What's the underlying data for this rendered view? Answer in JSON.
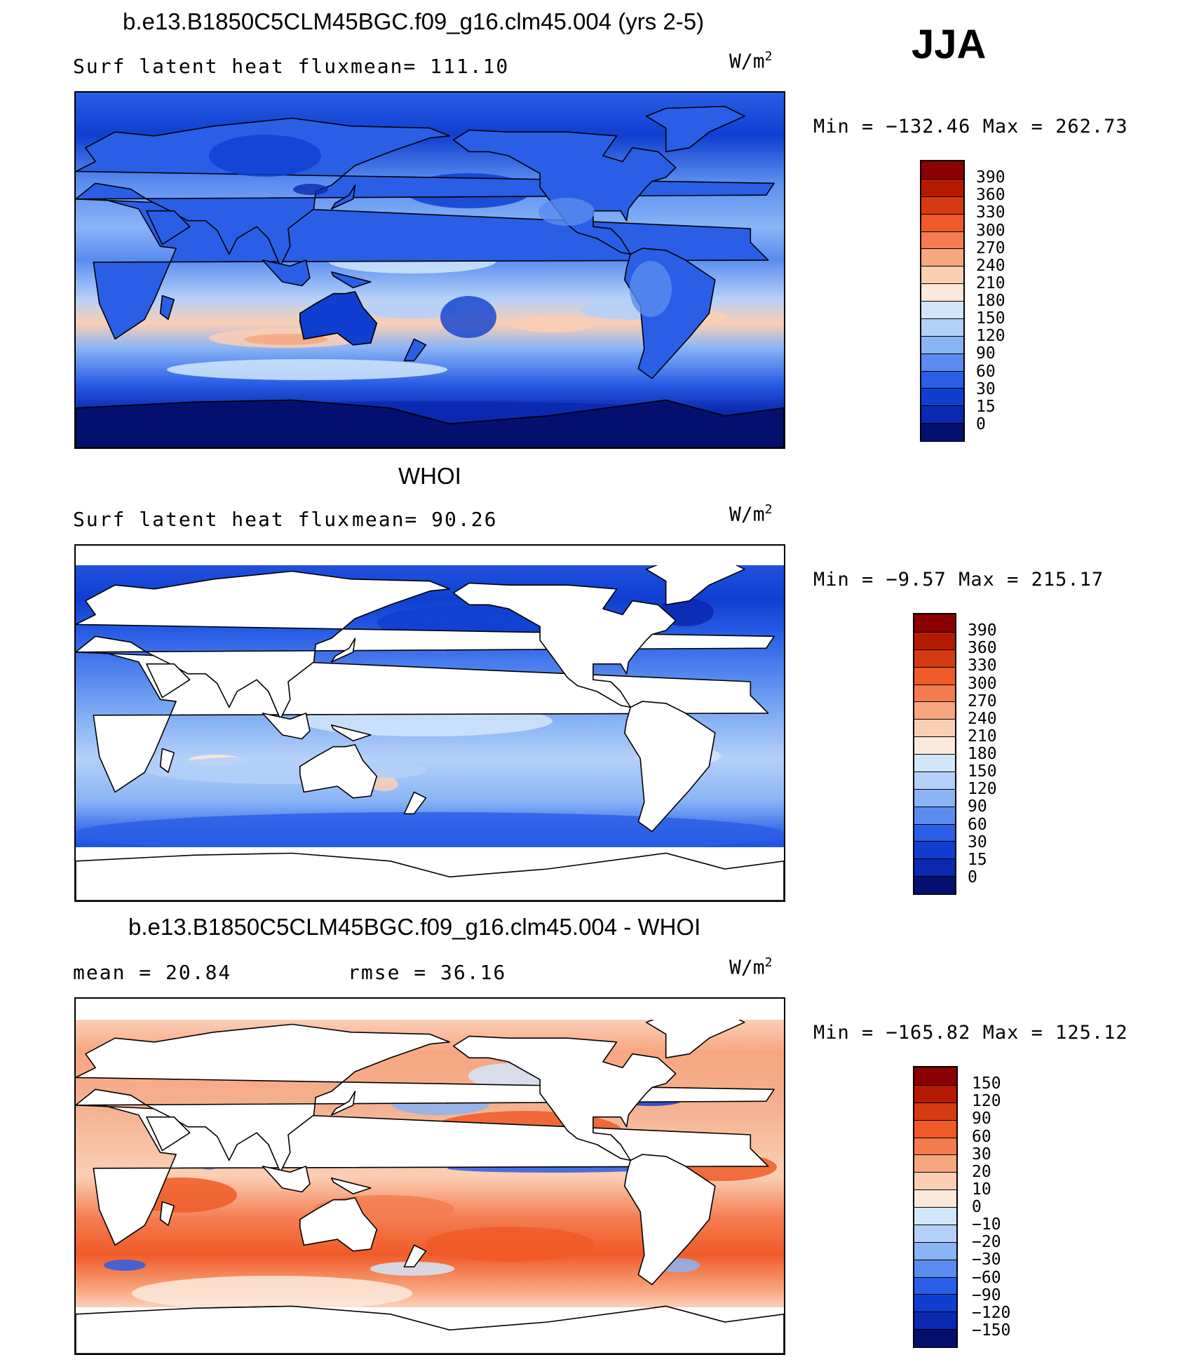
{
  "figure": {
    "season": "JJA",
    "units": "W/m",
    "units_sup": "2"
  },
  "panels": [
    {
      "id": "model",
      "title": "b.e13.B1850C5CLM45BGC.f09_g16.clm45.004 (yrs 2-5)",
      "left_label": "Surf latent heat flux",
      "right_label": "mean= 111.10",
      "stats": "Min = −132.46 Max = 262.73",
      "colorbar": {
        "levels": [
          "390",
          "360",
          "330",
          "300",
          "270",
          "240",
          "210",
          "180",
          "150",
          "120",
          "90",
          "60",
          "30",
          "15",
          "0"
        ],
        "colors": [
          "#8b0000",
          "#b51a00",
          "#d63a10",
          "#f05a28",
          "#f47c50",
          "#f8a680",
          "#fbcfb4",
          "#fde9dc",
          "#d2e6fa",
          "#b4d0f8",
          "#8ab4f6",
          "#5a8cf0",
          "#2a5ee6",
          "#0f3ed0",
          "#0a28b0",
          "#03106e"
        ]
      },
      "map_style": "model"
    },
    {
      "id": "obs",
      "title": "WHOI",
      "left_label": "Surf latent heat flux",
      "right_label": "mean=  90.26",
      "stats": "Min =  −9.57 Max = 215.17",
      "colorbar": {
        "levels": [
          "390",
          "360",
          "330",
          "300",
          "270",
          "240",
          "210",
          "180",
          "150",
          "120",
          "90",
          "60",
          "30",
          "15",
          "0"
        ],
        "colors": [
          "#8b0000",
          "#b51a00",
          "#d63a10",
          "#f05a28",
          "#f47c50",
          "#f8a680",
          "#fbcfb4",
          "#fde9dc",
          "#d2e6fa",
          "#b4d0f8",
          "#8ab4f6",
          "#5a8cf0",
          "#2a5ee6",
          "#0f3ed0",
          "#0a28b0",
          "#03106e"
        ]
      },
      "map_style": "obs"
    },
    {
      "id": "diff",
      "title": "b.e13.B1850C5CLM45BGC.f09_g16.clm45.004 - WHOI",
      "left_label": "mean =   20.84",
      "right_label": "rmse =   36.16",
      "stats": "Min = −165.82 Max = 125.12",
      "colorbar": {
        "levels": [
          "150",
          "120",
          "90",
          "60",
          "30",
          "20",
          "10",
          "0",
          "−10",
          "−20",
          "−30",
          "−60",
          "−90",
          "−120",
          "−150"
        ],
        "colors": [
          "#8b0000",
          "#b51a00",
          "#d63a10",
          "#f05a28",
          "#f47c50",
          "#f8a680",
          "#fbcfb4",
          "#fde9dc",
          "#d2e6fa",
          "#b4d0f8",
          "#8ab4f6",
          "#5a8cf0",
          "#2a5ee6",
          "#0f3ed0",
          "#0a28b0",
          "#03106e"
        ]
      },
      "map_style": "diff"
    }
  ],
  "chart_data": [
    {
      "type": "heatmap",
      "title": "b.e13.B1850C5CLM45BGC.f09_g16.clm45.004 (yrs 2-5)",
      "variable": "Surf latent heat flux",
      "units": "W/m2",
      "season": "JJA",
      "mean": 111.1,
      "min": -132.46,
      "max": 262.73,
      "contour_levels": [
        0,
        15,
        30,
        60,
        90,
        120,
        150,
        180,
        210,
        240,
        270,
        300,
        330,
        360,
        390
      ]
    },
    {
      "type": "heatmap",
      "title": "WHOI",
      "variable": "Surf latent heat flux",
      "units": "W/m2",
      "season": "JJA",
      "mean": 90.26,
      "min": -9.57,
      "max": 215.17,
      "contour_levels": [
        0,
        15,
        30,
        60,
        90,
        120,
        150,
        180,
        210,
        240,
        270,
        300,
        330,
        360,
        390
      ]
    },
    {
      "type": "heatmap",
      "title": "b.e13.B1850C5CLM45BGC.f09_g16.clm45.004 - WHOI",
      "units": "W/m2",
      "season": "JJA",
      "mean": 20.84,
      "rmse": 36.16,
      "min": -165.82,
      "max": 125.12,
      "contour_levels": [
        -150,
        -120,
        -90,
        -60,
        -30,
        -20,
        -10,
        0,
        10,
        20,
        30,
        60,
        90,
        120,
        150
      ]
    }
  ]
}
